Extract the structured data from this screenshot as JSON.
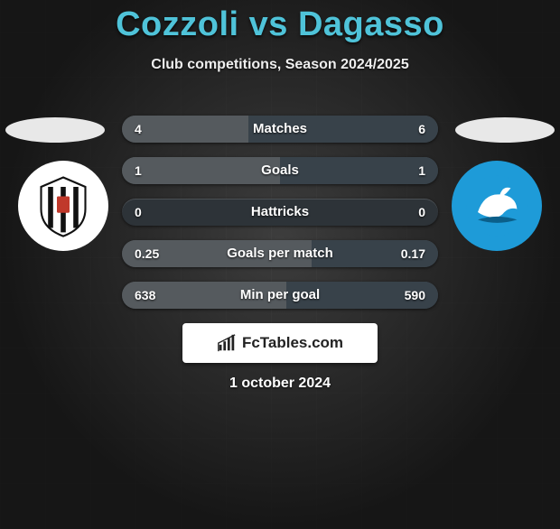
{
  "header": {
    "title": "Cozzoli vs Dagasso",
    "subtitle": "Club competitions, Season 2024/2025"
  },
  "colors": {
    "accent": "#4fc3d9",
    "bar_left": "#555a5e",
    "bar_right": "#38424a",
    "bar_bg": "#2d3338"
  },
  "stats": [
    {
      "label": "Matches",
      "left_value": "4",
      "right_value": "6",
      "left_pct": 40,
      "right_pct": 60
    },
    {
      "label": "Goals",
      "left_value": "1",
      "right_value": "1",
      "left_pct": 50,
      "right_pct": 50
    },
    {
      "label": "Hattricks",
      "left_value": "0",
      "right_value": "0",
      "left_pct": 0,
      "right_pct": 0
    },
    {
      "label": "Goals per match",
      "left_value": "0.25",
      "right_value": "0.17",
      "left_pct": 60,
      "right_pct": 40
    },
    {
      "label": "Min per goal",
      "left_value": "638",
      "right_value": "590",
      "left_pct": 52,
      "right_pct": 48
    }
  ],
  "brand": {
    "text": "FcTables.com"
  },
  "date": "1 october 2024",
  "clubs": {
    "left": {
      "name": "Ascoli",
      "bg": "#ffffff",
      "icon": "shield-stripes"
    },
    "right": {
      "name": "Pescara",
      "bg": "#1e9bd8",
      "icon": "dolphin"
    }
  }
}
